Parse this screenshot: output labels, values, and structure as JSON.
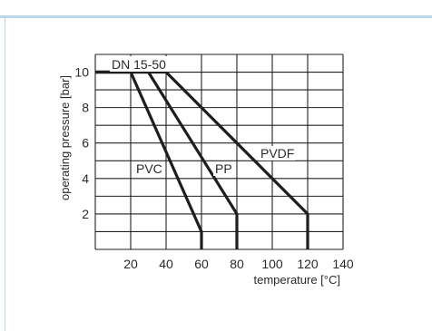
{
  "chart_data": {
    "type": "line",
    "title": "",
    "xlabel": "temperature [°C]",
    "ylabel": "operating pressure [bar]",
    "xlim": [
      0,
      140
    ],
    "ylim": [
      0,
      11
    ],
    "xticks": [
      20,
      40,
      60,
      80,
      100,
      120,
      140
    ],
    "yticks": [
      2,
      4,
      6,
      8,
      10
    ],
    "grid": true,
    "annotation": "DN 15-50",
    "series": [
      {
        "name": "PVC",
        "points": [
          [
            0,
            10
          ],
          [
            20,
            10
          ],
          [
            60,
            1
          ],
          [
            60,
            0
          ]
        ]
      },
      {
        "name": "PP",
        "points": [
          [
            0,
            10
          ],
          [
            30,
            10
          ],
          [
            80,
            2
          ],
          [
            80,
            0
          ]
        ]
      },
      {
        "name": "PVDF",
        "points": [
          [
            0,
            10
          ],
          [
            40,
            10
          ],
          [
            120,
            2
          ],
          [
            120,
            0
          ]
        ]
      }
    ],
    "colors": {
      "lines": "#1e1e1e",
      "grid": "#222222",
      "frame": "#b9d9ea"
    }
  }
}
